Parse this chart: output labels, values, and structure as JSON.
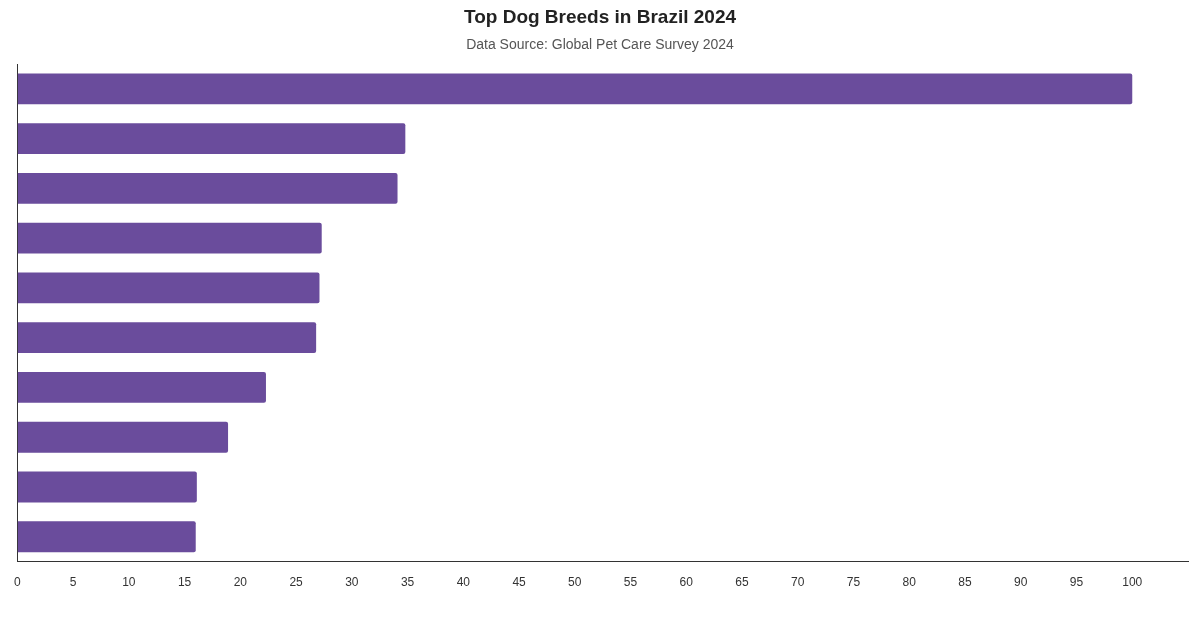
{
  "chart_data": {
    "type": "bar",
    "orientation": "horizontal",
    "title": "Top Dog Breeds in Brazil 2024",
    "subtitle": "Data Source: Global Pet Care Survey 2024",
    "categories": [
      null,
      null,
      null,
      null,
      null,
      null,
      null,
      null,
      null,
      null
    ],
    "values": [
      100,
      34.8,
      34.1,
      27.3,
      27.1,
      26.8,
      22.3,
      18.9,
      16.1,
      16.0
    ],
    "color": "#6a4c9c",
    "xlim": [
      0,
      105
    ],
    "xticks": [
      0,
      5,
      10,
      15,
      20,
      25,
      30,
      35,
      40,
      45,
      50,
      55,
      60,
      65,
      70,
      75,
      80,
      85,
      90,
      95,
      100
    ],
    "grid": false,
    "legend": false
  }
}
